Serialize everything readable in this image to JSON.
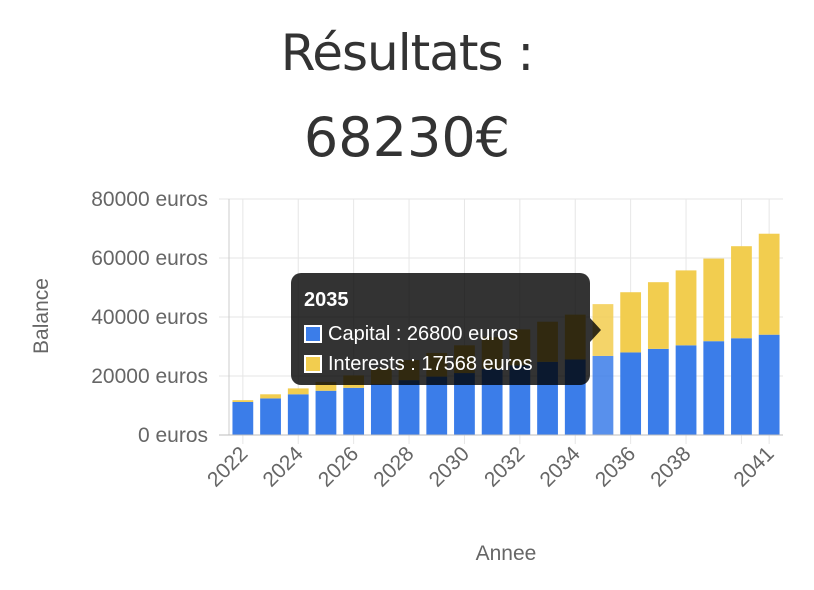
{
  "header": {
    "title": "Résultats :",
    "total": "68230€"
  },
  "chart_data": {
    "type": "bar",
    "stacked": true,
    "categories": [
      "2022",
      "2023",
      "2024",
      "2025",
      "2026",
      "2027",
      "2028",
      "2029",
      "2030",
      "2031",
      "2032",
      "2033",
      "2034",
      "2035",
      "2036",
      "2037",
      "2038",
      "2039",
      "2040",
      "2041"
    ],
    "x_tick_labels": [
      "2022",
      "2024",
      "2026",
      "2028",
      "2030",
      "2032",
      "2034",
      "2036",
      "2038",
      "2041"
    ],
    "series": [
      {
        "name": "Capital",
        "color": "#3b7de9",
        "values": [
          11200,
          12400,
          13800,
          15000,
          16000,
          17200,
          18600,
          19800,
          21000,
          22400,
          23600,
          24800,
          25600,
          26800,
          28000,
          29200,
          30400,
          31800,
          32800,
          34000
        ]
      },
      {
        "name": "Interests",
        "color": "#f2cd4f",
        "values": [
          600,
          1400,
          2000,
          3000,
          4200,
          5400,
          6800,
          8000,
          9400,
          10800,
          12200,
          13600,
          15200,
          17568,
          20400,
          22600,
          25400,
          28000,
          31200,
          34230
        ]
      }
    ],
    "ylabel": "Balance",
    "xlabel": "Annee",
    "ylim": [
      0,
      80000
    ],
    "y_ticks": [
      {
        "value": 0,
        "label": "0 euros"
      },
      {
        "value": 20000,
        "label": "20000 euros"
      },
      {
        "value": 40000,
        "label": "40000 euros"
      },
      {
        "value": 60000,
        "label": "60000 euros"
      },
      {
        "value": 80000,
        "label": "80000 euros"
      }
    ],
    "grid": true,
    "highlight_index": 13
  },
  "tooltip": {
    "title": "2035",
    "rows": [
      {
        "label": "Capital : 26800 euros",
        "color": "#3b7de9"
      },
      {
        "label": "Interests : 17568 euros",
        "color": "#f2cd4f"
      }
    ]
  }
}
